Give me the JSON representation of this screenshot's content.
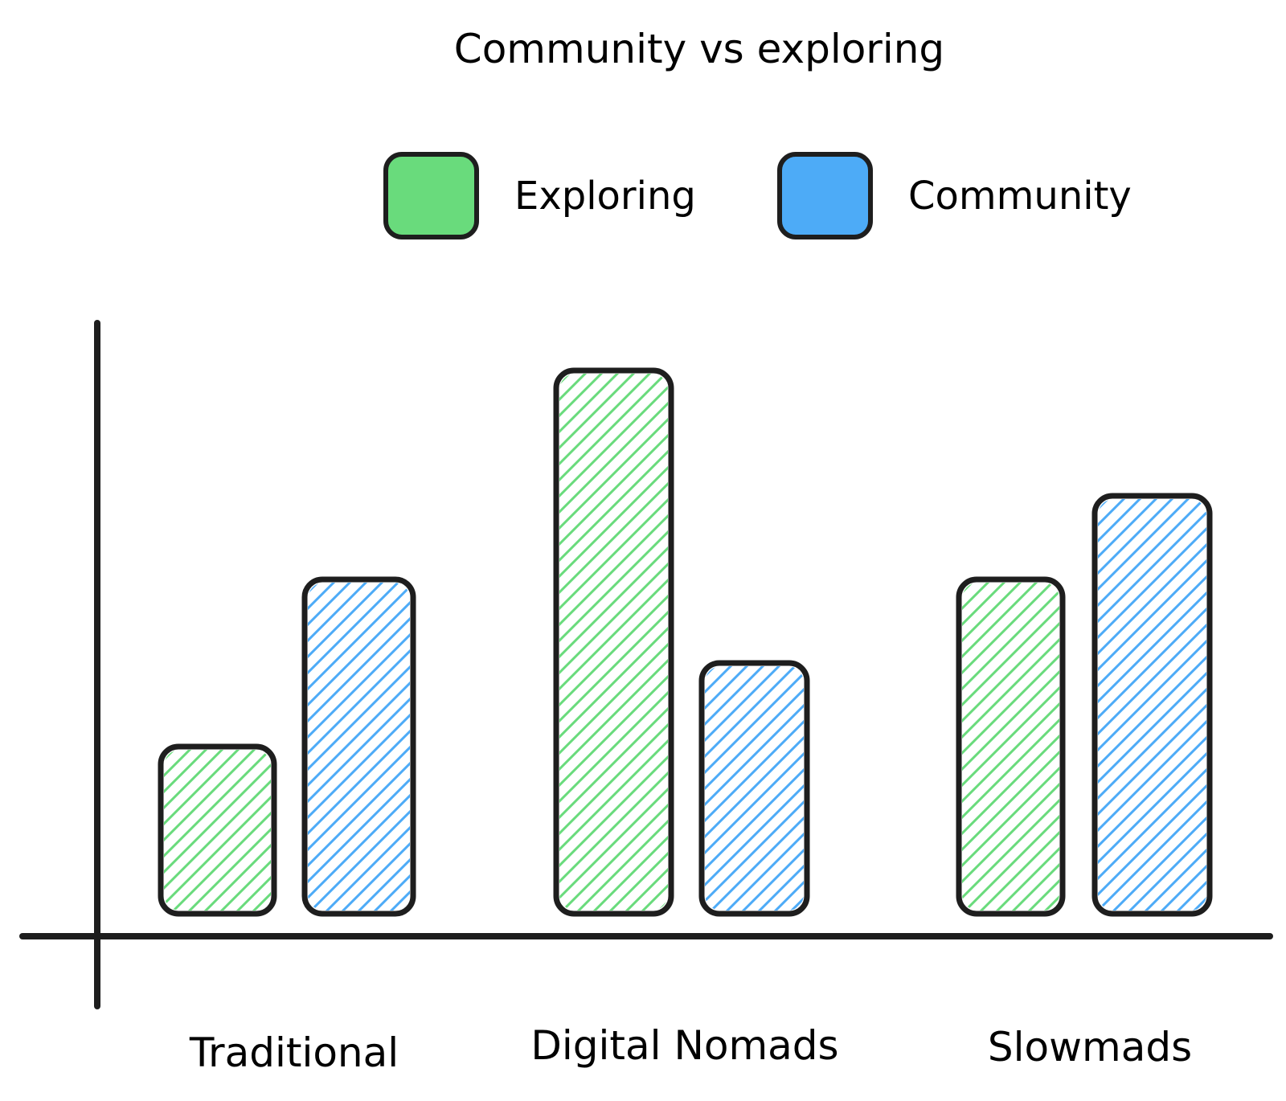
{
  "chart_data": {
    "type": "bar",
    "title": "Community vs exploring",
    "categories": [
      "Traditional",
      "Digital Nomads",
      "Slowmads"
    ],
    "series": [
      {
        "name": "Exploring",
        "color": "#69db7c",
        "values": [
          2,
          6.5,
          4
        ]
      },
      {
        "name": "Community",
        "color": "#4dabf7",
        "values": [
          4,
          3,
          5
        ]
      }
    ],
    "ylim": [
      0,
      7
    ],
    "xlabel": "",
    "ylabel": "",
    "grid": false,
    "legend_position": "top",
    "axis_color": "#1e1e1e",
    "bar_fill": "hachure"
  }
}
